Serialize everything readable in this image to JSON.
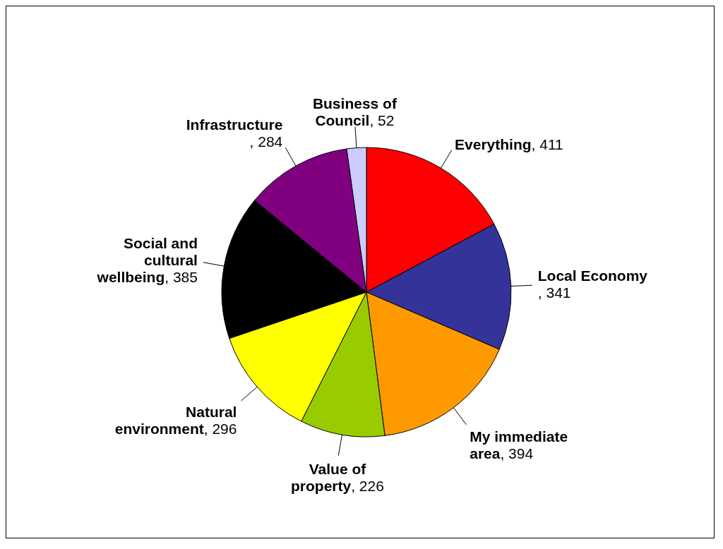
{
  "chart_data": {
    "type": "pie",
    "categories": [
      "Everything",
      "Local Economy",
      "My immediate area",
      "Value of property",
      "Natural environment",
      "Social and cultural wellbeing",
      "Infrastructure",
      "Business of Council"
    ],
    "values": [
      411,
      341,
      394,
      226,
      296,
      385,
      284,
      52
    ],
    "colors": [
      "#ff0000",
      "#333399",
      "#ff9900",
      "#99cc00",
      "#ffff00",
      "#000000",
      "#800080",
      "#ccccff"
    ],
    "value_labels": [
      ", 411",
      ", 341",
      ", 394",
      ", 226",
      ", 296",
      ", 385",
      ", 284",
      ", 52"
    ],
    "legend": false
  }
}
